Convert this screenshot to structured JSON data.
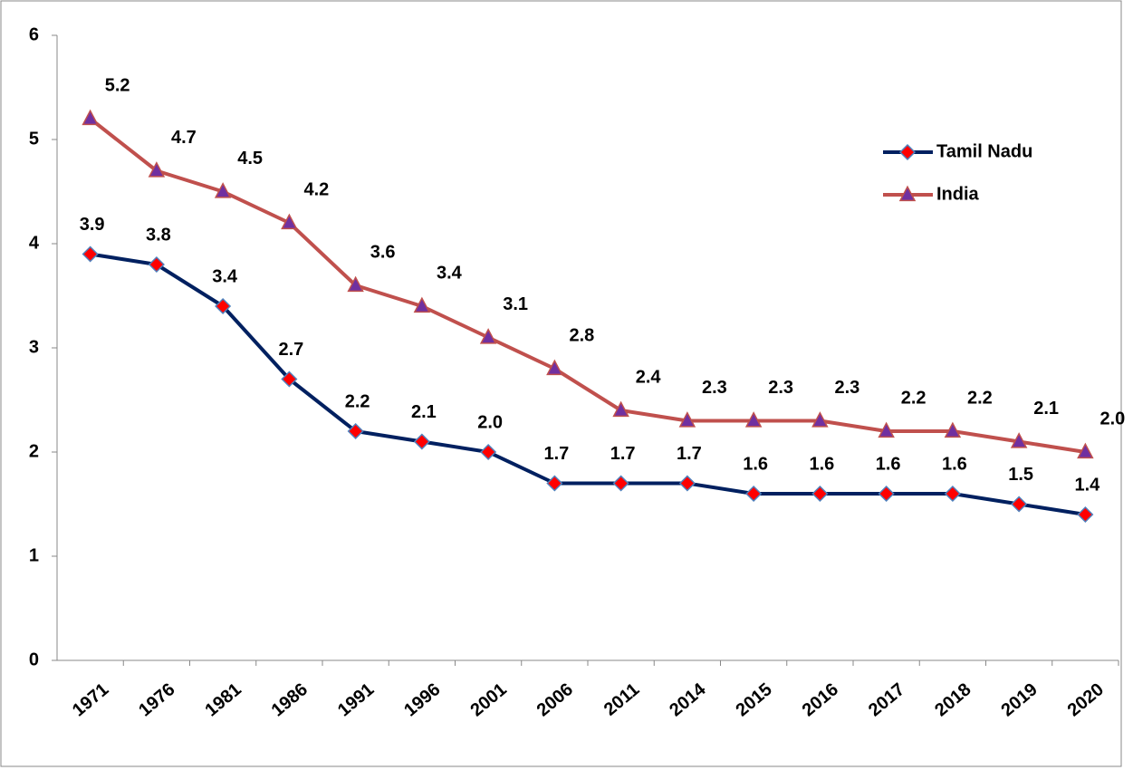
{
  "chart_data": {
    "type": "line",
    "categories": [
      "1971",
      "1976",
      "1981",
      "1986",
      "1991",
      "1996",
      "2001",
      "2006",
      "2011",
      "2014",
      "2015",
      "2016",
      "2017",
      "2018",
      "2019",
      "2020"
    ],
    "series": [
      {
        "name": "Tamil Nadu",
        "color": "#002060",
        "marker": "diamond",
        "marker_color": "#ff0000",
        "values": [
          3.9,
          3.8,
          3.4,
          2.7,
          2.2,
          2.1,
          2.0,
          1.7,
          1.7,
          1.7,
          1.6,
          1.6,
          1.6,
          1.6,
          1.5,
          1.4
        ],
        "value_labels": [
          "3.9",
          "3.8",
          "3.4",
          "2.7",
          "2.2",
          "2.1",
          "2.0",
          "1.7",
          "1.7",
          "1.7",
          "1.6",
          "1.6",
          "1.6",
          "1.6",
          "1.5",
          "1.4"
        ]
      },
      {
        "name": "India",
        "color": "#c0504d",
        "marker": "triangle",
        "marker_color": "#7030a0",
        "values": [
          5.2,
          4.7,
          4.5,
          4.2,
          3.6,
          3.4,
          3.1,
          2.8,
          2.4,
          2.3,
          2.3,
          2.3,
          2.2,
          2.2,
          2.1,
          2.0
        ],
        "value_labels": [
          "5.2",
          "4.7",
          "4.5",
          "4.2",
          "3.6",
          "3.4",
          "3.1",
          "2.8",
          "2.4",
          "2.3",
          "2.3",
          "2.3",
          "2.2",
          "2.2",
          "2.1",
          "2.0"
        ]
      }
    ],
    "ylim": [
      0,
      6
    ],
    "yticks": [
      0,
      1,
      2,
      3,
      4,
      5,
      6
    ],
    "grid": false,
    "legend": "right"
  }
}
